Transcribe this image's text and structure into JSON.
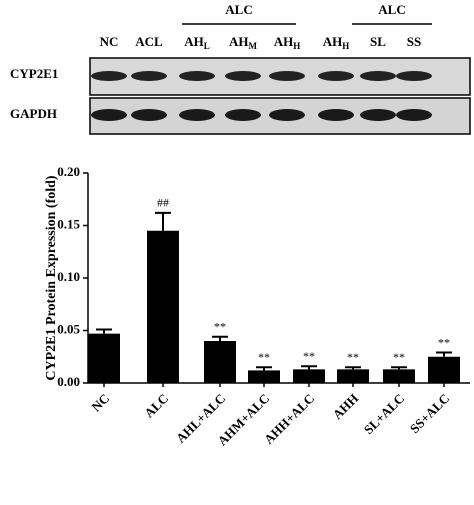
{
  "blot": {
    "groups": [
      {
        "label": "ALC"
      },
      {
        "label": "ALC"
      }
    ],
    "lanes": [
      {
        "text": "NC"
      },
      {
        "text": "ACL"
      },
      {
        "text": "AH",
        "sub": "L"
      },
      {
        "text": "AH",
        "sub": "M"
      },
      {
        "text": "AH",
        "sub": "H"
      },
      {
        "text": "AH",
        "sub": "H"
      },
      {
        "text": "SL"
      },
      {
        "text": "SS"
      }
    ],
    "rows": [
      "CYP2E1",
      "GAPDH"
    ]
  },
  "chart_data": {
    "type": "bar",
    "y_label": "CYP2E1 Protein Expression (fold)",
    "categories": [
      "NC",
      "ALC",
      "AHL+ALC",
      "AHM+ALC",
      "AHH+ALC",
      "AHH",
      "SL+ALC",
      "SS+ALC"
    ],
    "values": [
      0.047,
      0.145,
      0.04,
      0.012,
      0.013,
      0.013,
      0.013,
      0.025
    ],
    "errors": [
      0.004,
      0.017,
      0.004,
      0.003,
      0.003,
      0.002,
      0.002,
      0.004
    ],
    "annotations": [
      null,
      "##",
      "**",
      "**",
      "**",
      "**",
      "**",
      "**"
    ],
    "color": "#000000",
    "ylim": [
      0,
      0.2
    ],
    "yticks": [
      {
        "value": 0,
        "label": "0.00"
      },
      {
        "value": 0.05,
        "label": "0.05"
      },
      {
        "value": 0.1,
        "label": "0.10"
      },
      {
        "value": 0.15,
        "label": "0.15"
      },
      {
        "value": 0.2,
        "label": "0.20"
      }
    ]
  }
}
